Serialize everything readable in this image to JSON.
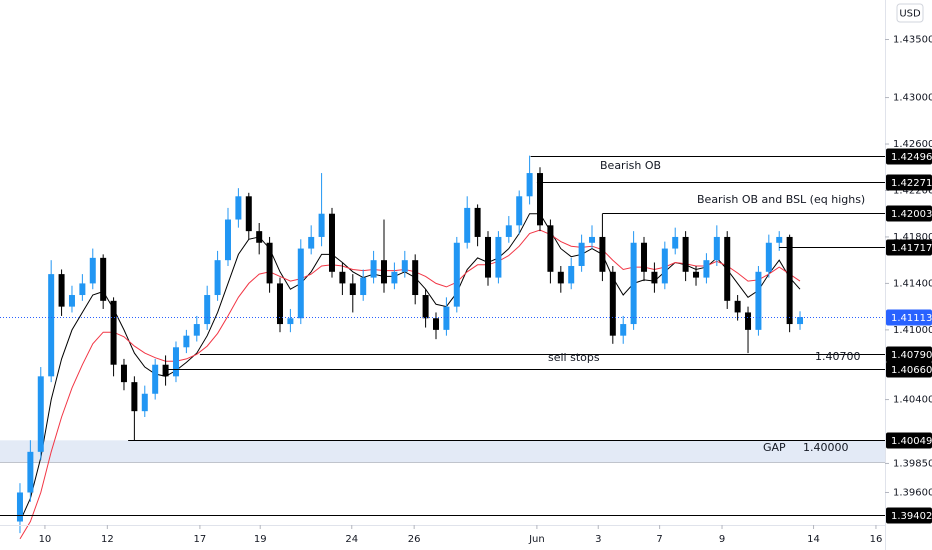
{
  "chart_data": {
    "type": "candlestick",
    "currency": "USD",
    "xlim": [
      -1.92,
      83.17
    ],
    "ylim": [
      1.3932,
      1.4384
    ],
    "xticks": [
      {
        "value": 2.4,
        "label": "10"
      },
      {
        "value": 8.4,
        "label": "12"
      },
      {
        "value": 17.3,
        "label": "17"
      },
      {
        "value": 23.1,
        "label": "19"
      },
      {
        "value": 31.9,
        "label": "24"
      },
      {
        "value": 37.9,
        "label": "26"
      },
      {
        "value": 49.7,
        "label": "Jun"
      },
      {
        "value": 55.6,
        "label": "3"
      },
      {
        "value": 61.5,
        "label": "7"
      },
      {
        "value": 67.5,
        "label": "9"
      },
      {
        "value": 76.3,
        "label": "14"
      },
      {
        "value": 82.3,
        "label": "16"
      }
    ],
    "yticks": [
      {
        "value": 1.435,
        "label": "1.43500"
      },
      {
        "value": 1.43,
        "label": "1.43000"
      },
      {
        "value": 1.426,
        "label": "1.42600"
      },
      {
        "value": 1.422,
        "label": "1.42200"
      },
      {
        "value": 1.418,
        "label": "1.41800"
      },
      {
        "value": 1.414,
        "label": "1.41400"
      },
      {
        "value": 1.41,
        "label": "1.41000"
      },
      {
        "value": 1.404,
        "label": "1.40400"
      },
      {
        "value": 1.3985,
        "label": "1.39850"
      },
      {
        "value": 1.396,
        "label": "1.39600"
      }
    ],
    "grid": false,
    "up_color": "#2196f3",
    "down_color": "#000000",
    "open": [
      1.3935,
      1.396,
      1.3995,
      1.406,
      1.4148,
      1.412,
      1.413,
      1.414,
      1.4162,
      1.4125,
      1.407,
      1.4055,
      1.403,
      1.4045,
      1.407,
      1.406,
      1.4085,
      1.4095,
      1.4105,
      1.413,
      1.416,
      1.4195,
      1.4215,
      1.4185,
      1.4175,
      1.414,
      1.4105,
      1.411,
      1.417,
      1.418,
      1.42,
      1.415,
      1.414,
      1.413,
      1.4145,
      1.416,
      1.414,
      1.415,
      1.416,
      1.413,
      1.411,
      1.41,
      1.412,
      1.4175,
      1.4205,
      1.418,
      1.4145,
      1.418,
      1.419,
      1.4215,
      1.4235,
      1.419,
      1.415,
      1.414,
      1.4155,
      1.4175,
      1.418,
      1.415,
      1.4095,
      1.4105,
      1.4175,
      1.415,
      1.414,
      1.417,
      1.418,
      1.415,
      1.4145,
      1.416,
      1.418,
      1.4125,
      1.4115,
      1.41,
      1.415,
      1.4175,
      1.418,
      1.4105
    ],
    "high": [
      1.3968,
      1.4005,
      1.4068,
      1.416,
      1.4152,
      1.4138,
      1.4148,
      1.417,
      1.4165,
      1.4128,
      1.4075,
      1.406,
      1.4052,
      1.4075,
      1.4078,
      1.409,
      1.41,
      1.4112,
      1.4138,
      1.4168,
      1.4205,
      1.4222,
      1.4218,
      1.4192,
      1.418,
      1.4145,
      1.4118,
      1.4178,
      1.419,
      1.4235,
      1.4205,
      1.4158,
      1.4148,
      1.4152,
      1.4168,
      1.4195,
      1.4158,
      1.4168,
      1.4165,
      1.4135,
      1.4115,
      1.4128,
      1.418,
      1.4215,
      1.4208,
      1.4185,
      1.4185,
      1.4198,
      1.422,
      1.425,
      1.424,
      1.4195,
      1.4155,
      1.4162,
      1.4182,
      1.419,
      1.42,
      1.4155,
      1.4112,
      1.4185,
      1.418,
      1.4158,
      1.4176,
      1.4188,
      1.4185,
      1.4155,
      1.4166,
      1.419,
      1.4185,
      1.413,
      1.412,
      1.4155,
      1.4182,
      1.4185,
      1.4182,
      1.4116
    ],
    "low": [
      1.3925,
      1.3952,
      1.3988,
      1.4055,
      1.4112,
      1.4115,
      1.4125,
      1.4135,
      1.4118,
      1.406,
      1.4048,
      1.4005,
      1.4025,
      1.404,
      1.4052,
      1.4055,
      1.408,
      1.409,
      1.41,
      1.4125,
      1.4155,
      1.4188,
      1.4178,
      1.4165,
      1.4132,
      1.4098,
      1.4098,
      1.4105,
      1.4165,
      1.4172,
      1.4145,
      1.413,
      1.4115,
      1.4125,
      1.414,
      1.4132,
      1.4135,
      1.4145,
      1.4122,
      1.4102,
      1.4092,
      1.4095,
      1.4115,
      1.417,
      1.4172,
      1.4138,
      1.414,
      1.4175,
      1.4182,
      1.4208,
      1.4185,
      1.414,
      1.4132,
      1.4135,
      1.415,
      1.417,
      1.4142,
      1.4088,
      1.4088,
      1.41,
      1.4142,
      1.4132,
      1.4135,
      1.4165,
      1.4142,
      1.4138,
      1.414,
      1.4155,
      1.4118,
      1.4108,
      1.408,
      1.4095,
      1.4145,
      1.4168,
      1.4098,
      1.41
    ],
    "close": [
      1.396,
      1.3995,
      1.406,
      1.4148,
      1.412,
      1.413,
      1.414,
      1.4162,
      1.4125,
      1.407,
      1.4055,
      1.403,
      1.4045,
      1.407,
      1.406,
      1.4085,
      1.4095,
      1.4105,
      1.413,
      1.416,
      1.4195,
      1.4215,
      1.4185,
      1.4175,
      1.414,
      1.4105,
      1.411,
      1.417,
      1.418,
      1.42,
      1.415,
      1.414,
      1.413,
      1.4145,
      1.416,
      1.414,
      1.415,
      1.416,
      1.413,
      1.411,
      1.41,
      1.412,
      1.4175,
      1.4205,
      1.418,
      1.4145,
      1.418,
      1.419,
      1.4215,
      1.4235,
      1.419,
      1.415,
      1.414,
      1.4155,
      1.4175,
      1.418,
      1.415,
      1.4095,
      1.4105,
      1.4175,
      1.415,
      1.414,
      1.417,
      1.418,
      1.415,
      1.4145,
      1.416,
      1.418,
      1.4125,
      1.4115,
      1.41,
      1.415,
      1.4175,
      1.418,
      1.4105,
      1.4111
    ],
    "series": [
      {
        "color": "#000000",
        "values": [
          1.3935,
          1.3955,
          1.399,
          1.404,
          1.4075,
          1.41,
          1.4115,
          1.413,
          1.4133,
          1.4118,
          1.41,
          1.408,
          1.4068,
          1.4062,
          1.406,
          1.4065,
          1.4072,
          1.408,
          1.4095,
          1.4115,
          1.414,
          1.4165,
          1.4178,
          1.418,
          1.417,
          1.415,
          1.4135,
          1.414,
          1.415,
          1.4165,
          1.4165,
          1.4158,
          1.415,
          1.4145,
          1.4148,
          1.4146,
          1.4146,
          1.415,
          1.4145,
          1.4135,
          1.4122,
          1.412,
          1.4132,
          1.4152,
          1.4162,
          1.4158,
          1.4162,
          1.417,
          1.4183,
          1.42,
          1.42,
          1.4185,
          1.417,
          1.4163,
          1.4165,
          1.417,
          1.4165,
          1.4145,
          1.413,
          1.414,
          1.4143,
          1.4142,
          1.415,
          1.4158,
          1.4156,
          1.4152,
          1.4154,
          1.4162,
          1.4152,
          1.414,
          1.4128,
          1.4134,
          1.4148,
          1.416,
          1.4145,
          1.4135
        ]
      },
      {
        "color": "#f23645",
        "values": [
          1.392,
          1.3935,
          1.396,
          1.3995,
          1.4025,
          1.405,
          1.407,
          1.4088,
          1.4098,
          1.4098,
          1.4094,
          1.4086,
          1.408,
          1.4076,
          1.4073,
          1.4073,
          1.4075,
          1.4079,
          1.4086,
          1.4097,
          1.4112,
          1.4128,
          1.414,
          1.4148,
          1.415,
          1.4146,
          1.4142,
          1.4144,
          1.4148,
          1.4155,
          1.4156,
          1.4155,
          1.4152,
          1.4151,
          1.4152,
          1.4151,
          1.4151,
          1.4152,
          1.415,
          1.4146,
          1.414,
          1.4137,
          1.4141,
          1.415,
          1.4156,
          1.4156,
          1.4159,
          1.4164,
          1.4172,
          1.4183,
          1.4186,
          1.4182,
          1.4176,
          1.4172,
          1.4171,
          1.4172,
          1.4169,
          1.416,
          1.4152,
          1.4154,
          1.4154,
          1.4152,
          1.4154,
          1.4158,
          1.4157,
          1.4155,
          1.4155,
          1.4159,
          1.4155,
          1.4149,
          1.4142,
          1.4143,
          1.4148,
          1.4154,
          1.4148,
          1.4142
        ]
      }
    ],
    "levels": [
      {
        "value": 1.42496,
        "label": "1.42496",
        "from": 49.1,
        "color": "#000000"
      },
      {
        "value": 1.42271,
        "label": "1.42271",
        "from": 49.7,
        "color": "#000000"
      },
      {
        "value": 1.42003,
        "label": "1.42003",
        "from": 56.0,
        "color": "#000000"
      },
      {
        "value": 1.41717,
        "label": "1.41717",
        "from": 73.0,
        "color": "#000000"
      },
      {
        "value": 1.41113,
        "label": "1.41113",
        "from": -1.92,
        "color": "#2962ff",
        "style": "dotted"
      },
      {
        "value": 1.4079,
        "label": "1.40790",
        "from": 17.3,
        "color": "#000000"
      },
      {
        "value": 1.4066,
        "label": "1.40660",
        "from": 14.0,
        "color": "#000000"
      },
      {
        "value": 1.40049,
        "label": "1.40049",
        "from": 10.4,
        "color": "#000000"
      },
      {
        "value": 1.39402,
        "label": "1.39402",
        "from": -1.92,
        "color": "#000000"
      }
    ],
    "zone": {
      "from": 1.3986,
      "to": 1.40049,
      "color": "#e3eaf6"
    },
    "annotations": [
      "Bearish OB",
      "Bearish OB and BSL (eq highs)",
      "sell stops",
      "1.40700",
      "GAP",
      "1.40000"
    ]
  }
}
